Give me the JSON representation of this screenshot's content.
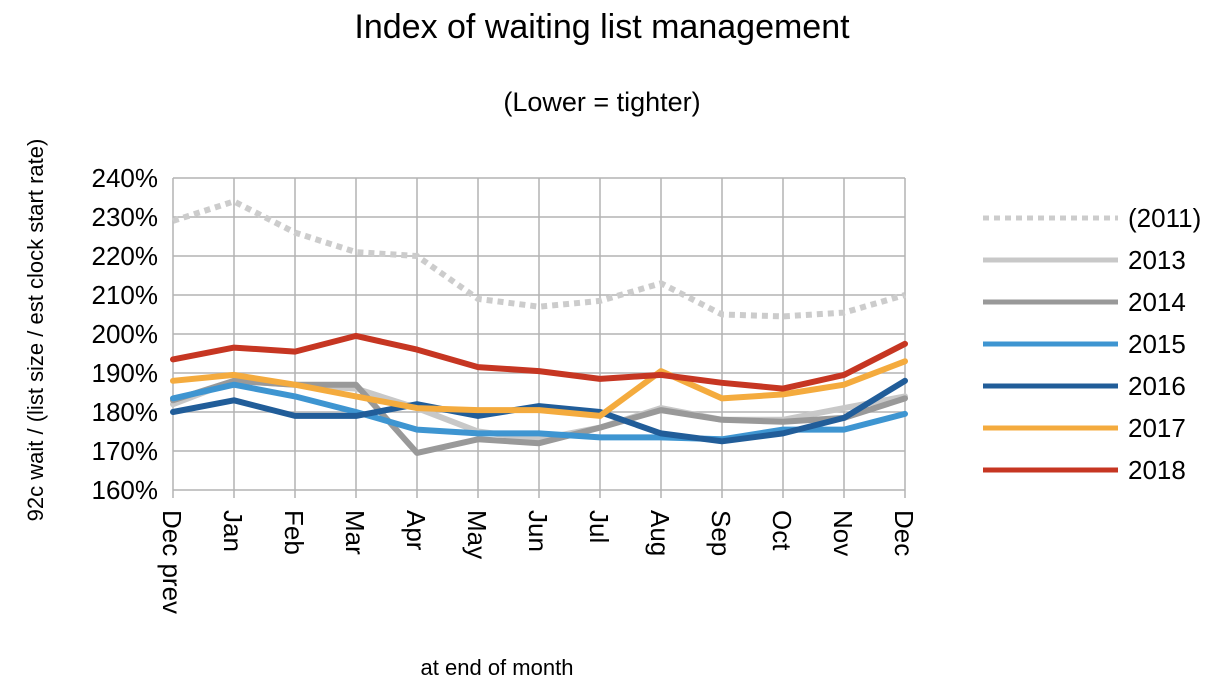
{
  "chart_data": {
    "type": "line",
    "title": "Index of waiting list management",
    "subtitle": "(Lower = tighter)",
    "xlabel": "at end of month",
    "ylabel": "92c wait / (list size / est clock start rate)",
    "ylim": [
      160,
      240
    ],
    "ytick_step": 10,
    "ytick_suffix": "%",
    "grid": true,
    "legend_position": "right",
    "categories": [
      "Dec prev",
      "Jan",
      "Feb",
      "Mar",
      "Apr",
      "May",
      "Jun",
      "Jul",
      "Aug",
      "Sep",
      "Oct",
      "Nov",
      "Dec"
    ],
    "series": [
      {
        "name": "(2011)",
        "color": "#cccccc",
        "dashed": true,
        "values": [
          229,
          234,
          226,
          221,
          220,
          209,
          207,
          208.5,
          213,
          205,
          204.5,
          205.5,
          210
        ]
      },
      {
        "name": "2013",
        "color": "#c8c8c8",
        "dashed": false,
        "values": [
          182,
          188,
          187,
          186,
          181,
          175,
          173,
          176,
          181,
          178,
          178,
          181,
          184
        ]
      },
      {
        "name": "2014",
        "color": "#999999",
        "dashed": false,
        "values": [
          183,
          188,
          187,
          187,
          169.5,
          173,
          172,
          176,
          180.5,
          178,
          177.5,
          178.5,
          183.5
        ]
      },
      {
        "name": "2015",
        "color": "#3e95d1",
        "dashed": false,
        "values": [
          183.5,
          187,
          184,
          180,
          175.5,
          174.5,
          174.5,
          173.5,
          173.5,
          173,
          175.5,
          175.5,
          179.5
        ]
      },
      {
        "name": "2016",
        "color": "#215d99",
        "dashed": false,
        "values": [
          180,
          183,
          179,
          179,
          182,
          179,
          181.5,
          180,
          174.5,
          172.5,
          174.5,
          178.5,
          188
        ]
      },
      {
        "name": "2017",
        "color": "#f4ab3e",
        "dashed": false,
        "values": [
          188,
          189.5,
          187,
          184,
          181,
          180.5,
          180.5,
          179,
          190.5,
          183.5,
          184.5,
          187,
          193
        ]
      },
      {
        "name": "2018",
        "color": "#c63622",
        "dashed": false,
        "values": [
          193.5,
          196.5,
          195.5,
          199.5,
          196,
          191.5,
          190.5,
          188.5,
          189.5,
          187.5,
          186,
          189.5,
          197.5
        ]
      }
    ]
  }
}
